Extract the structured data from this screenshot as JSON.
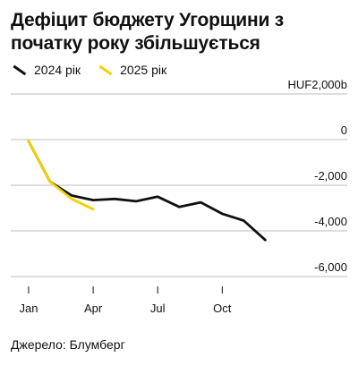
{
  "title": "Дефіцит бюджету Угорщини з початку року збільшується",
  "source": "Джерело: Блумберг",
  "chart_data": {
    "type": "line",
    "title": "Дефіцит бюджету Угорщини з початку року збільшується",
    "ylim": [
      -6000,
      2000
    ],
    "yticks": [
      {
        "value": 2000,
        "label": "HUF2,000b"
      },
      {
        "value": 0,
        "label": "0"
      },
      {
        "value": -2000,
        "label": "-2,000"
      },
      {
        "value": -4000,
        "label": "-4,000"
      },
      {
        "value": -6000,
        "label": "-6,000"
      }
    ],
    "xlim": [
      1,
      12.9
    ],
    "xticks": [
      {
        "value": 1,
        "label": "Jan"
      },
      {
        "value": 4,
        "label": "Apr"
      },
      {
        "value": 7,
        "label": "Jul"
      },
      {
        "value": 10,
        "label": "Oct"
      }
    ],
    "legend_position": "top-left",
    "series": [
      {
        "name": "2024 рік",
        "color": "#111111",
        "x": [
          1,
          2,
          3,
          4,
          5,
          6,
          7,
          8,
          9,
          10,
          11,
          12
        ],
        "values": [
          -80,
          -1850,
          -2450,
          -2650,
          -2600,
          -2700,
          -2500,
          -2950,
          -2750,
          -3250,
          -3550,
          -4400
        ]
      },
      {
        "name": "2025 рік",
        "color": "#f5d100",
        "x": [
          1,
          2,
          3,
          4
        ],
        "values": [
          -80,
          -1850,
          -2600,
          -3050
        ]
      }
    ]
  }
}
